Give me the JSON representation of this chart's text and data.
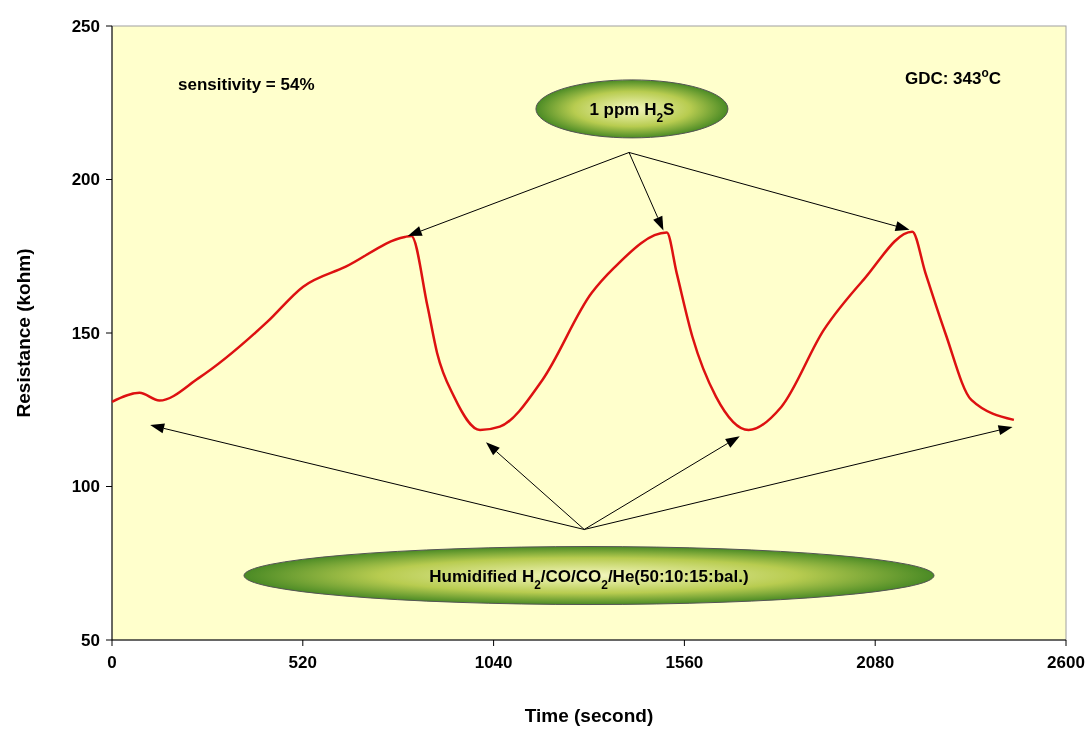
{
  "chart_data": {
    "type": "line",
    "xlabel": "Time (second)",
    "ylabel": "Resistance (kohm)",
    "xlim": [
      0,
      2600
    ],
    "xticks": [
      0,
      520,
      1040,
      1560,
      2080,
      2600
    ],
    "ylim": [
      50,
      250
    ],
    "yticks": [
      50,
      100,
      150,
      200,
      250
    ],
    "grid": false,
    "marker": "none",
    "line_style": "solid",
    "annotations": [
      "sensitivity = 54%",
      "GDC: 343$^{o}$C",
      "1 ppm H$_{2}$S",
      "Humidified H$_{2}$/CO/CO$_{2}$/He(50:10:15:bal.)"
    ],
    "series": [
      {
        "color": "#dd1111",
        "x": [
          0,
          75,
          129,
          236,
          423,
          521,
          637,
          798,
          816,
          860,
          886,
          932,
          1003,
          1057,
          1173,
          1307,
          1368,
          1512,
          1539,
          1582,
          1646,
          1735,
          1824,
          1940,
          2048,
          2181,
          2217,
          2271,
          2342,
          2458
        ],
        "values": [
          127.6,
          130.5,
          128.0,
          135.3,
          153.6,
          165.1,
          171.6,
          181.3,
          181.6,
          158.6,
          143.5,
          129.3,
          118.4,
          119.5,
          134.7,
          163.0,
          171.2,
          182.7,
          169.5,
          148.7,
          129.3,
          118.4,
          125.9,
          151.0,
          167.3,
          183.0,
          169.5,
          150.0,
          128.2,
          121.7
        ]
      }
    ]
  }
}
